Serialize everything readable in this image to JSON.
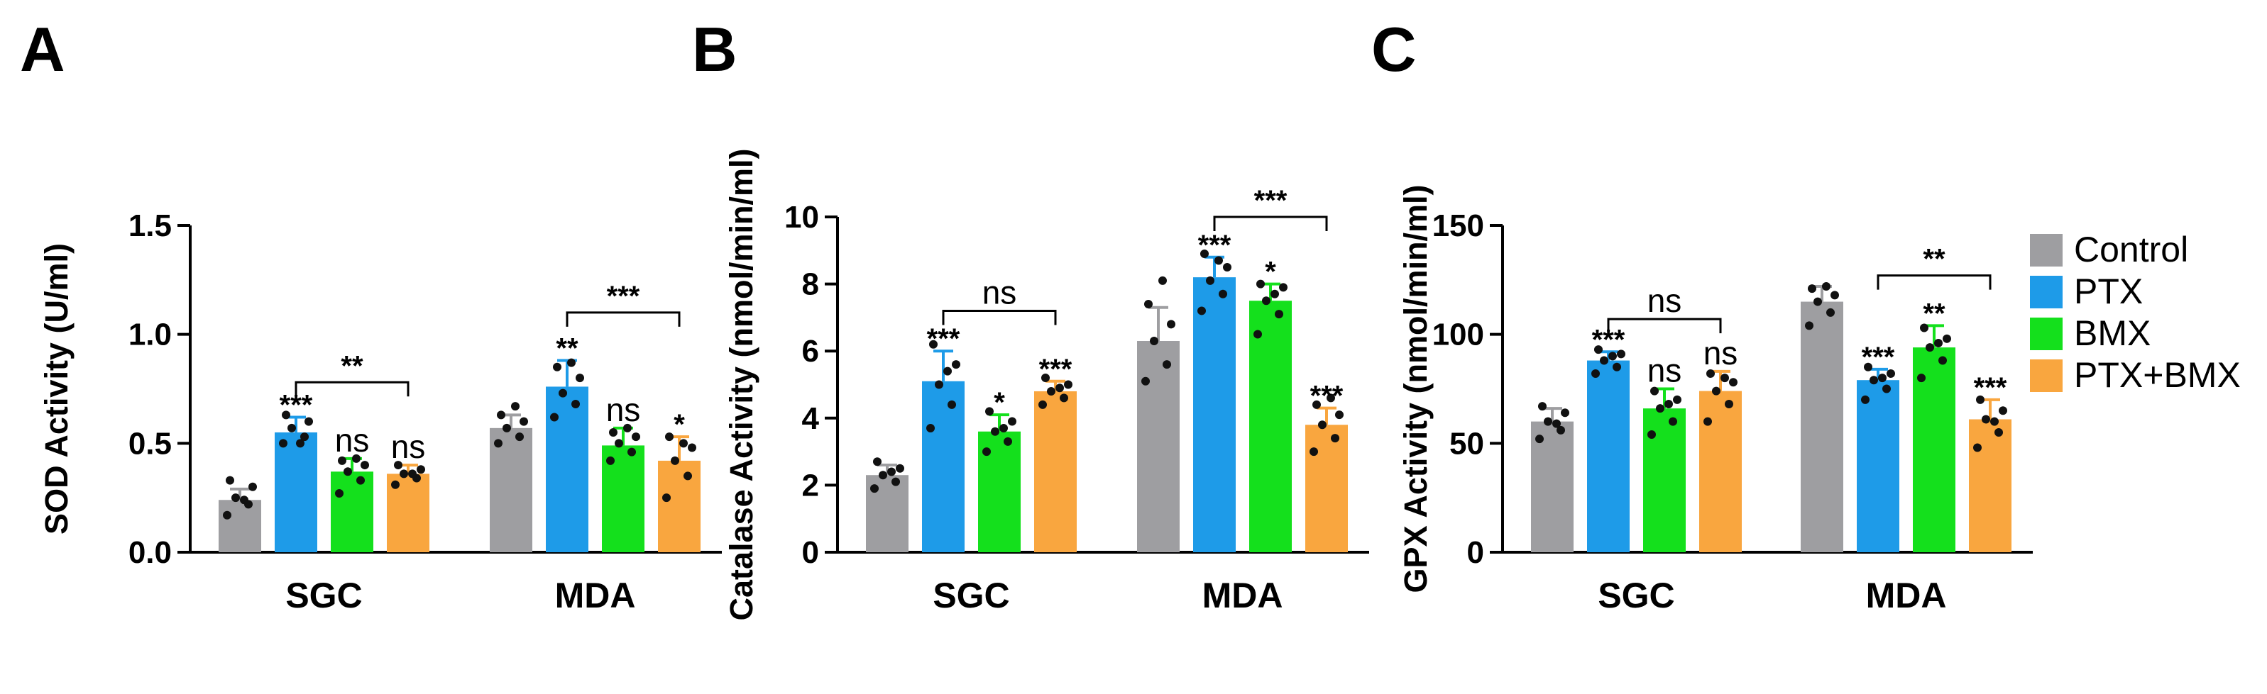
{
  "legend": {
    "items": [
      {
        "label": "Control",
        "color": "#9e9ea1"
      },
      {
        "label": "PTX",
        "color": "#1e9be8"
      },
      {
        "label": "BMX",
        "color": "#14e01c"
      },
      {
        "label": "PTX+BMX",
        "color": "#f9a63f"
      }
    ]
  },
  "chart_data": [
    {
      "panel": "A",
      "type": "bar",
      "categories": [
        "SGC",
        "MDA"
      ],
      "ylabel": "SOD Activity (U/ml)",
      "ylim": [
        0,
        1.5
      ],
      "yticks": [
        "0.0",
        "0.5",
        "1.0",
        "1.5"
      ],
      "series": [
        {
          "name": "Control",
          "values": [
            0.24,
            0.57
          ],
          "errors": [
            0.05,
            0.06
          ],
          "points": [
            [
              0.17,
              0.22,
              0.25,
              0.3,
              0.33,
              0.24
            ],
            [
              0.5,
              0.53,
              0.57,
              0.6,
              0.63,
              0.67
            ]
          ]
        },
        {
          "name": "PTX",
          "values": [
            0.55,
            0.76
          ],
          "errors": [
            0.07,
            0.12
          ],
          "points": [
            [
              0.5,
              0.53,
              0.57,
              0.6,
              0.63,
              0.5
            ],
            [
              0.62,
              0.68,
              0.73,
              0.8,
              0.85,
              0.87
            ]
          ]
        },
        {
          "name": "BMX",
          "values": [
            0.37,
            0.49
          ],
          "errors": [
            0.06,
            0.08
          ],
          "points": [
            [
              0.27,
              0.33,
              0.37,
              0.4,
              0.42,
              0.43
            ],
            [
              0.42,
              0.46,
              0.5,
              0.53,
              0.55,
              0.57
            ]
          ]
        },
        {
          "name": "PTX+BMX",
          "values": [
            0.36,
            0.42
          ],
          "errors": [
            0.04,
            0.11
          ],
          "points": [
            [
              0.31,
              0.34,
              0.36,
              0.38,
              0.4,
              0.36
            ],
            [
              0.25,
              0.35,
              0.42,
              0.48,
              0.53,
              0.5
            ]
          ]
        }
      ],
      "significance": [
        {
          "category": 0,
          "series": 1,
          "text": "***"
        },
        {
          "category": 0,
          "series": 2,
          "text": "ns"
        },
        {
          "category": 0,
          "series": 3,
          "text": "ns"
        },
        {
          "category": 1,
          "series": 1,
          "text": "**"
        },
        {
          "category": 1,
          "series": 2,
          "text": "ns"
        },
        {
          "category": 1,
          "series": 3,
          "text": "*"
        }
      ],
      "brackets": [
        {
          "category": 0,
          "from": 1,
          "to": 3,
          "y": 0.78,
          "text": "**"
        },
        {
          "category": 1,
          "from": 1,
          "to": 3,
          "y": 1.1,
          "text": "***"
        }
      ]
    },
    {
      "panel": "B",
      "type": "bar",
      "categories": [
        "SGC",
        "MDA"
      ],
      "ylabel": "Catalase Activity (nmol/min/ml)",
      "ylim": [
        0,
        10
      ],
      "yticks": [
        "0",
        "2",
        "4",
        "6",
        "8",
        "10"
      ],
      "series": [
        {
          "name": "Control",
          "values": [
            2.3,
            6.3
          ],
          "errors": [
            0.3,
            1.0
          ],
          "points": [
            [
              1.9,
              2.1,
              2.3,
              2.5,
              2.7,
              2.4
            ],
            [
              5.1,
              5.6,
              6.3,
              6.8,
              7.4,
              8.1
            ]
          ]
        },
        {
          "name": "PTX",
          "values": [
            5.1,
            8.2
          ],
          "errors": [
            0.9,
            0.6
          ],
          "points": [
            [
              3.7,
              4.4,
              5.0,
              5.6,
              6.2,
              5.4
            ],
            [
              7.2,
              7.7,
              8.1,
              8.5,
              8.9,
              8.7
            ]
          ]
        },
        {
          "name": "BMX",
          "values": [
            3.6,
            7.5
          ],
          "errors": [
            0.5,
            0.5
          ],
          "points": [
            [
              3.0,
              3.3,
              3.6,
              3.9,
              4.2,
              3.7
            ],
            [
              6.5,
              7.1,
              7.5,
              7.9,
              8.0,
              7.7
            ]
          ]
        },
        {
          "name": "PTX+BMX",
          "values": [
            4.8,
            3.8
          ],
          "errors": [
            0.3,
            0.5
          ],
          "points": [
            [
              4.4,
              4.6,
              4.8,
              5.0,
              5.2,
              4.9
            ],
            [
              3.0,
              3.4,
              3.8,
              4.1,
              4.4,
              4.6
            ]
          ]
        }
      ],
      "significance": [
        {
          "category": 0,
          "series": 1,
          "text": "***"
        },
        {
          "category": 0,
          "series": 2,
          "text": "*"
        },
        {
          "category": 0,
          "series": 3,
          "text": "***"
        },
        {
          "category": 1,
          "series": 1,
          "text": "***"
        },
        {
          "category": 1,
          "series": 2,
          "text": "*"
        },
        {
          "category": 1,
          "series": 3,
          "text": "***"
        }
      ],
      "brackets": [
        {
          "category": 0,
          "from": 1,
          "to": 3,
          "y": 7.2,
          "text": "ns"
        },
        {
          "category": 1,
          "from": 1,
          "to": 3,
          "y": 10.0,
          "text": "***"
        }
      ]
    },
    {
      "panel": "C",
      "type": "bar",
      "categories": [
        "SGC",
        "MDA"
      ],
      "ylabel": "GPX Activity (nmol/min/ml)",
      "ylim": [
        0,
        150
      ],
      "yticks": [
        "0",
        "50",
        "100",
        "150"
      ],
      "series": [
        {
          "name": "Control",
          "values": [
            60,
            115
          ],
          "errors": [
            6,
            7
          ],
          "points": [
            [
              52,
              56,
              60,
              64,
              67,
              59
            ],
            [
              104,
              110,
              115,
              118,
              121,
              122
            ]
          ]
        },
        {
          "name": "PTX",
          "values": [
            88,
            79
          ],
          "errors": [
            4,
            5
          ],
          "points": [
            [
              82,
              85,
              88,
              91,
              93,
              90
            ],
            [
              70,
              75,
              79,
              82,
              85,
              80
            ]
          ]
        },
        {
          "name": "BMX",
          "values": [
            66,
            94
          ],
          "errors": [
            9,
            10
          ],
          "points": [
            [
              54,
              60,
              66,
              70,
              74,
              68
            ],
            [
              80,
              88,
              94,
              98,
              103,
              96
            ]
          ]
        },
        {
          "name": "PTX+BMX",
          "values": [
            74,
            61
          ],
          "errors": [
            9,
            9
          ],
          "points": [
            [
              60,
              68,
              74,
              78,
              82,
              80
            ],
            [
              48,
              55,
              61,
              65,
              70,
              60
            ]
          ]
        }
      ],
      "significance": [
        {
          "category": 0,
          "series": 1,
          "text": "***"
        },
        {
          "category": 0,
          "series": 2,
          "text": "ns"
        },
        {
          "category": 0,
          "series": 3,
          "text": "ns"
        },
        {
          "category": 1,
          "series": 1,
          "text": "***"
        },
        {
          "category": 1,
          "series": 2,
          "text": "**"
        },
        {
          "category": 1,
          "series": 3,
          "text": "***"
        }
      ],
      "brackets": [
        {
          "category": 0,
          "from": 1,
          "to": 3,
          "y": 107,
          "text": "ns"
        },
        {
          "category": 1,
          "from": 1,
          "to": 3,
          "y": 127,
          "text": "**"
        }
      ]
    }
  ]
}
